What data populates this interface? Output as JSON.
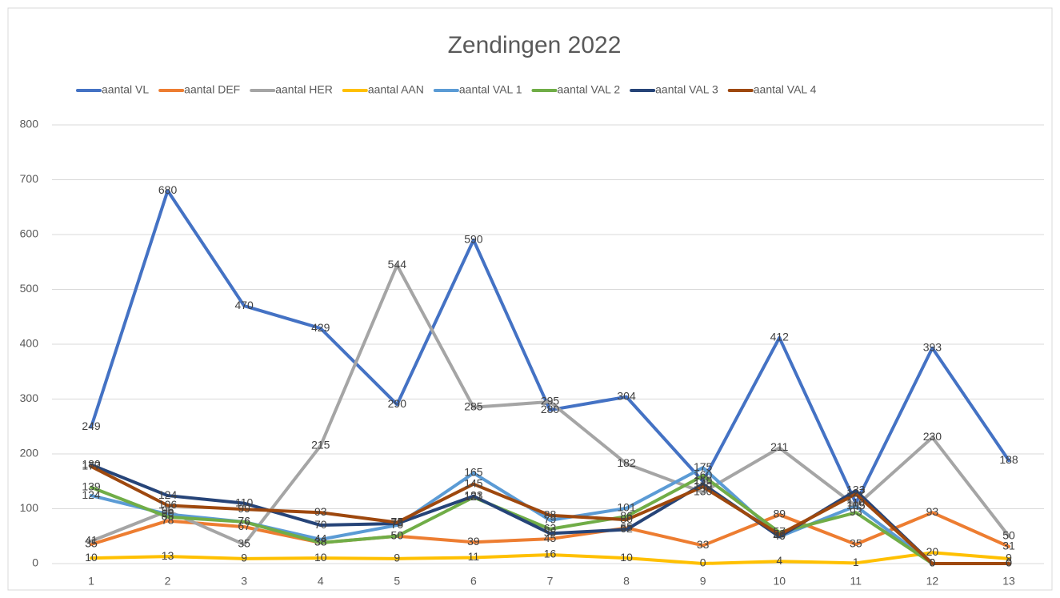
{
  "chart_data": {
    "type": "line",
    "title": "Zendingen 2022",
    "categories": [
      "1",
      "2",
      "3",
      "4",
      "5",
      "6",
      "7",
      "8",
      "9",
      "10",
      "11",
      "12",
      "13"
    ],
    "series": [
      {
        "name": "aantal VL",
        "color": "#4472c4",
        "values": [
          249,
          680,
          470,
          429,
          290,
          590,
          280,
          304,
          150,
          412,
          110,
          393,
          188
        ]
      },
      {
        "name": "aantal DEF",
        "color": "#ed7d31",
        "values": [
          35,
          78,
          67,
          38,
          50,
          39,
          45,
          65,
          33,
          89,
          35,
          93,
          31
        ]
      },
      {
        "name": "aantal HER",
        "color": "#a5a5a5",
        "values": [
          41,
          96,
          35,
          215,
          544,
          285,
          295,
          182,
          130,
          211,
          105,
          230,
          50
        ]
      },
      {
        "name": "aantal AAN",
        "color": "#ffc000",
        "values": [
          10,
          13,
          9,
          10,
          9,
          11,
          16,
          10,
          0,
          4,
          1,
          20,
          9
        ]
      },
      {
        "name": "aantal VAL 1",
        "color": "#5b9bd5",
        "values": [
          124,
          90,
          76,
          44,
          70,
          165,
          79,
          101,
          175,
          49,
          105,
          0,
          0
        ]
      },
      {
        "name": "aantal VAL 2",
        "color": "#70ad47",
        "values": [
          139,
          85,
          76,
          38,
          50,
          121,
          63,
          86,
          160,
          57,
          93,
          0,
          0
        ]
      },
      {
        "name": "aantal VAL 3",
        "color": "#264478",
        "values": [
          180,
          124,
          110,
          70,
          73,
          123,
          55,
          62,
          145,
          49,
          133,
          0,
          0
        ]
      },
      {
        "name": "aantal VAL 4",
        "color": "#9e480e",
        "values": [
          177,
          106,
          99,
          93,
          75,
          145,
          88,
          80,
          140,
          53,
          127,
          0,
          0
        ]
      }
    ],
    "ylim": [
      0,
      800
    ],
    "yticks": [
      0,
      100,
      200,
      300,
      400,
      500,
      600,
      700,
      800
    ],
    "grid": true,
    "legend": "top"
  }
}
